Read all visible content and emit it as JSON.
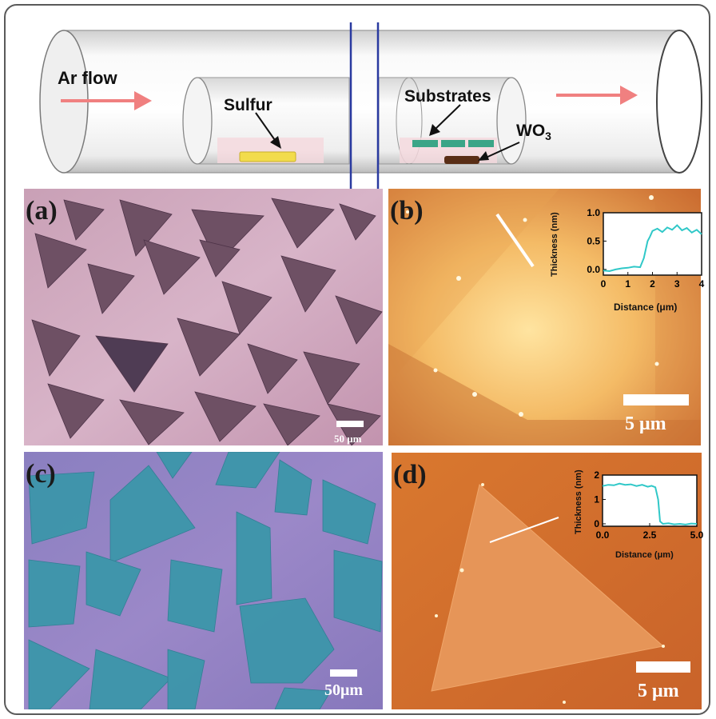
{
  "schematic": {
    "ar_flow": "Ar flow",
    "sulfur": "Sulfur",
    "substrates": "Substrates",
    "wo3_main": "WO",
    "wo3_sub": "3"
  },
  "panels": {
    "a": {
      "label": "(a)",
      "scale": "50 μm"
    },
    "b": {
      "label": "(b)",
      "scale": "5 μm",
      "inset": {
        "ylabel": "Thickness (nm)",
        "xlabel": "Distance (μm)",
        "xticks": [
          "0",
          "1",
          "2",
          "3",
          "4"
        ],
        "yticks": [
          "1.0",
          "0.5",
          "0.0"
        ]
      }
    },
    "c": {
      "label": "(c)",
      "scale": "50μm"
    },
    "d": {
      "label": "(d)",
      "scale": "5 μm",
      "inset": {
        "ylabel": "Thickness (nm)",
        "xlabel": "Distance (μm)",
        "xticks": [
          "0.0",
          "2.5",
          "5.0"
        ],
        "yticks": [
          "2",
          "1",
          "0"
        ]
      }
    }
  },
  "colors": {
    "flow_arrow": "#f08080",
    "tube_divider": "#2a3aa0",
    "profile_line": "#30c8c8"
  },
  "chart_data": [
    {
      "type": "line",
      "panel": "b",
      "xlabel": "Distance (μm)",
      "ylabel": "Thickness (nm)",
      "xlim": [
        0,
        4
      ],
      "ylim": [
        -0.1,
        1.0
      ],
      "series": [
        {
          "x": [
            0,
            0.25,
            0.5,
            0.75,
            1.0,
            1.25,
            1.5,
            1.65,
            1.8,
            1.9,
            2.0,
            2.2,
            2.4,
            2.6,
            2.8,
            3.0,
            3.2,
            3.4,
            3.6,
            3.8,
            4.0
          ],
          "values": [
            -0.02,
            -0.03,
            0.0,
            0.02,
            0.03,
            0.05,
            0.04,
            0.2,
            0.5,
            0.58,
            0.68,
            0.72,
            0.66,
            0.74,
            0.7,
            0.78,
            0.69,
            0.73,
            0.65,
            0.7,
            0.62
          ]
        }
      ]
    },
    {
      "type": "line",
      "panel": "d",
      "xlabel": "Distance (μm)",
      "ylabel": "Thickness (nm)",
      "xlim": [
        0,
        5
      ],
      "ylim": [
        -0.1,
        2.0
      ],
      "series": [
        {
          "x": [
            0,
            0.3,
            0.6,
            0.9,
            1.2,
            1.5,
            1.8,
            2.1,
            2.4,
            2.6,
            2.8,
            2.95,
            3.05,
            3.2,
            3.5,
            3.8,
            4.1,
            4.4,
            4.7,
            5.0
          ],
          "values": [
            1.55,
            1.6,
            1.58,
            1.65,
            1.6,
            1.62,
            1.55,
            1.6,
            1.52,
            1.56,
            1.5,
            1.0,
            0.1,
            0.0,
            0.02,
            -0.02,
            0.0,
            -0.03,
            0.01,
            0.0
          ]
        }
      ]
    }
  ]
}
